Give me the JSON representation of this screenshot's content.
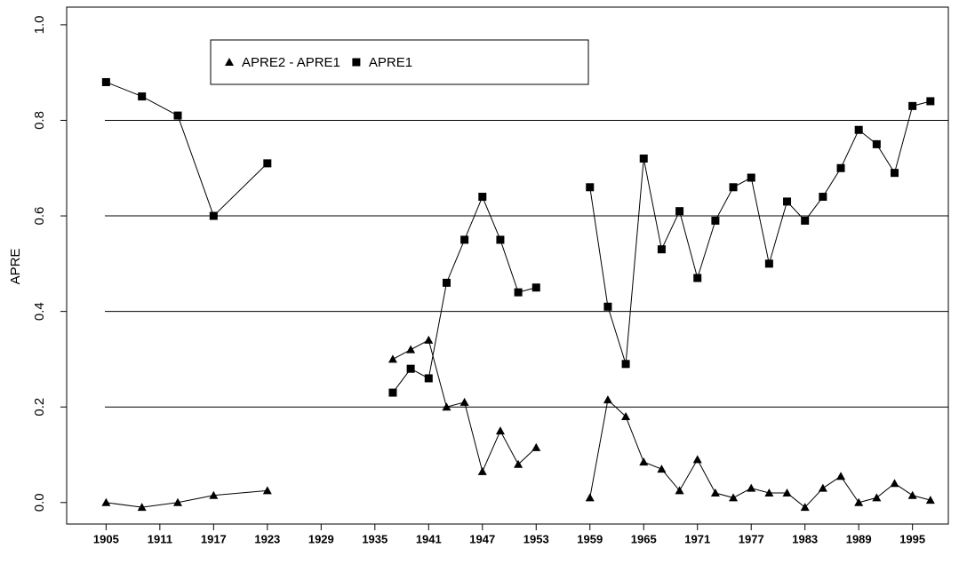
{
  "chart_data": {
    "type": "line",
    "y_label": "APRE",
    "x": [
      1905,
      1909,
      1913,
      1917,
      1923,
      null,
      1937,
      1939,
      1941,
      1943,
      1945,
      1947,
      1949,
      1951,
      1953,
      null,
      1959,
      1961,
      1963,
      1965,
      1967,
      1969,
      1971,
      1973,
      1975,
      1977,
      1979,
      1981,
      1983,
      1985,
      1987,
      1989,
      1991,
      1993,
      1995,
      1997
    ],
    "series": [
      {
        "name": "APRE2 - APRE1",
        "color": "#000000",
        "marker": "triangle",
        "values": [
          0.0,
          -0.01,
          0.0,
          0.015,
          0.025,
          null,
          0.3,
          0.32,
          0.34,
          0.2,
          0.21,
          0.065,
          0.15,
          0.08,
          0.115,
          null,
          0.01,
          0.215,
          0.18,
          0.085,
          0.07,
          0.025,
          0.09,
          0.02,
          0.01,
          0.03,
          0.02,
          0.02,
          -0.01,
          0.03,
          0.055,
          0.0,
          0.01,
          0.04,
          0.015,
          0.005
        ]
      },
      {
        "name": "APRE1",
        "color": "#000000",
        "marker": "square",
        "values": [
          0.88,
          0.85,
          0.81,
          0.6,
          0.71,
          null,
          0.23,
          0.28,
          0.26,
          0.46,
          0.55,
          0.64,
          0.55,
          0.44,
          0.45,
          null,
          0.66,
          0.41,
          0.29,
          0.72,
          0.53,
          0.61,
          0.47,
          0.59,
          0.66,
          0.68,
          0.5,
          0.63,
          0.59,
          0.64,
          0.7,
          0.78,
          0.75,
          0.69,
          0.83,
          0.84
        ]
      }
    ],
    "xlim": [
      1900.6,
      1999
    ],
    "xticks": [
      1905,
      1911,
      1917,
      1923,
      1929,
      1935,
      1941,
      1947,
      1953,
      1959,
      1965,
      1971,
      1977,
      1983,
      1989,
      1995
    ],
    "ylim": [
      -0.045,
      1.037
    ],
    "yticks": [
      {
        "value": 0,
        "label": "0.0"
      },
      0.2,
      0.4,
      0.6,
      0.8,
      {
        "value": 1,
        "label": "1.0"
      }
    ],
    "grid": true,
    "legend": "top-left"
  }
}
